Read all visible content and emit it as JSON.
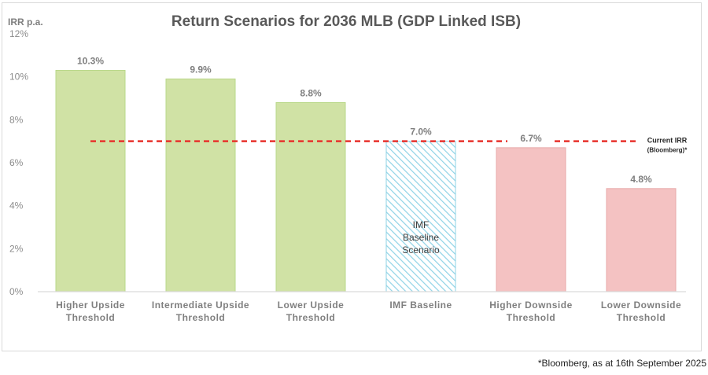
{
  "chart_data": {
    "type": "bar",
    "title": "Return Scenarios for 2036 MLB (GDP Linked ISB)",
    "ylabel": "IRR p.a.",
    "xlabel": "",
    "ylim": [
      0,
      12
    ],
    "yticks": [
      0,
      2,
      4,
      6,
      8,
      10,
      12
    ],
    "ytick_labels": [
      "0%",
      "2%",
      "4%",
      "6%",
      "8%",
      "10%",
      "12%"
    ],
    "grid": false,
    "categories": [
      [
        "Higher Upside",
        "Threshold"
      ],
      [
        "Intermediate Upside",
        "Threshold"
      ],
      [
        "Lower Upside",
        "Threshold"
      ],
      [
        "IMF Baseline"
      ],
      [
        "Higher Downside",
        "Threshold"
      ],
      [
        "Lower Downside",
        "Threshold"
      ]
    ],
    "values": [
      10.3,
      9.9,
      8.8,
      7.0,
      6.7,
      4.8
    ],
    "data_labels": [
      "10.3%",
      "9.9%",
      "8.8%",
      "7.0%",
      "6.7%",
      "4.8%"
    ],
    "bar_styles": [
      "upside",
      "upside",
      "upside",
      "baseline",
      "downside",
      "downside"
    ],
    "bar_annotation": {
      "index": 3,
      "lines": [
        "IMF",
        "Baseline",
        "Scenario"
      ]
    },
    "reference_line": {
      "value": 7.0,
      "label_lines": [
        "Current IRR",
        "(Bloomberg)*"
      ],
      "color": "#e8322c",
      "style": "dashed"
    },
    "colors": {
      "upside_fill": "#d0e2a5",
      "upside_edge": "#b9d88a",
      "downside_fill": "#f4c2c2",
      "downside_edge": "#e8aaaa",
      "baseline_hatch": "#8fd3e6",
      "text": "#7f7f7f",
      "title": "#595959"
    }
  },
  "footnote": "*Bloomberg, as at 16th September 2025"
}
